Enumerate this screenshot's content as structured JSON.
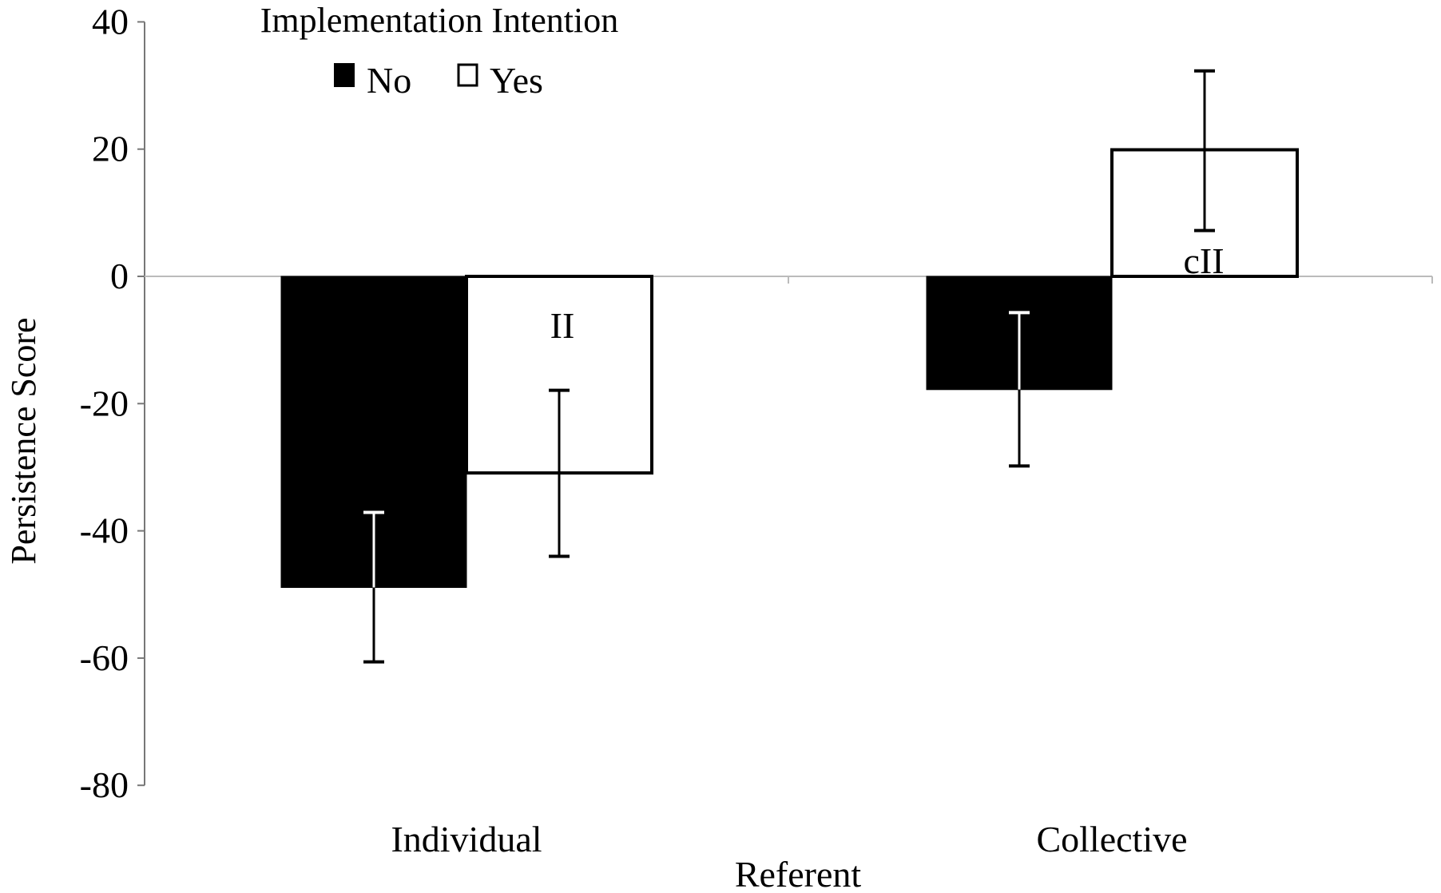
{
  "chart_data": {
    "type": "bar",
    "title": "",
    "legend_title": "Implementation Intention",
    "legend_position": "top-left inside",
    "xlabel": "Referent",
    "ylabel": "Persistence Score",
    "categories": [
      "Individual",
      "Collective"
    ],
    "series": [
      {
        "name": "No",
        "color": "#000000",
        "values": [
          -48.9,
          -17.8
        ],
        "error_low": [
          -60.6,
          -29.8
        ],
        "error_high": [
          -37.1,
          -5.7
        ]
      },
      {
        "name": "Yes",
        "color": "#ffffff",
        "values": [
          -30.9,
          19.9
        ],
        "error_low": [
          -44.0,
          7.2
        ],
        "error_high": [
          -17.9,
          32.3
        ]
      }
    ],
    "annotations": [
      {
        "category": "Individual",
        "series": "Yes",
        "text": "II"
      },
      {
        "category": "Collective",
        "series": "Yes",
        "text": "cII"
      }
    ],
    "ylim": [
      -80,
      40
    ],
    "yticks": [
      "40",
      "20",
      "0",
      "-20",
      "-40",
      "-60",
      "-80"
    ],
    "grid": false
  }
}
